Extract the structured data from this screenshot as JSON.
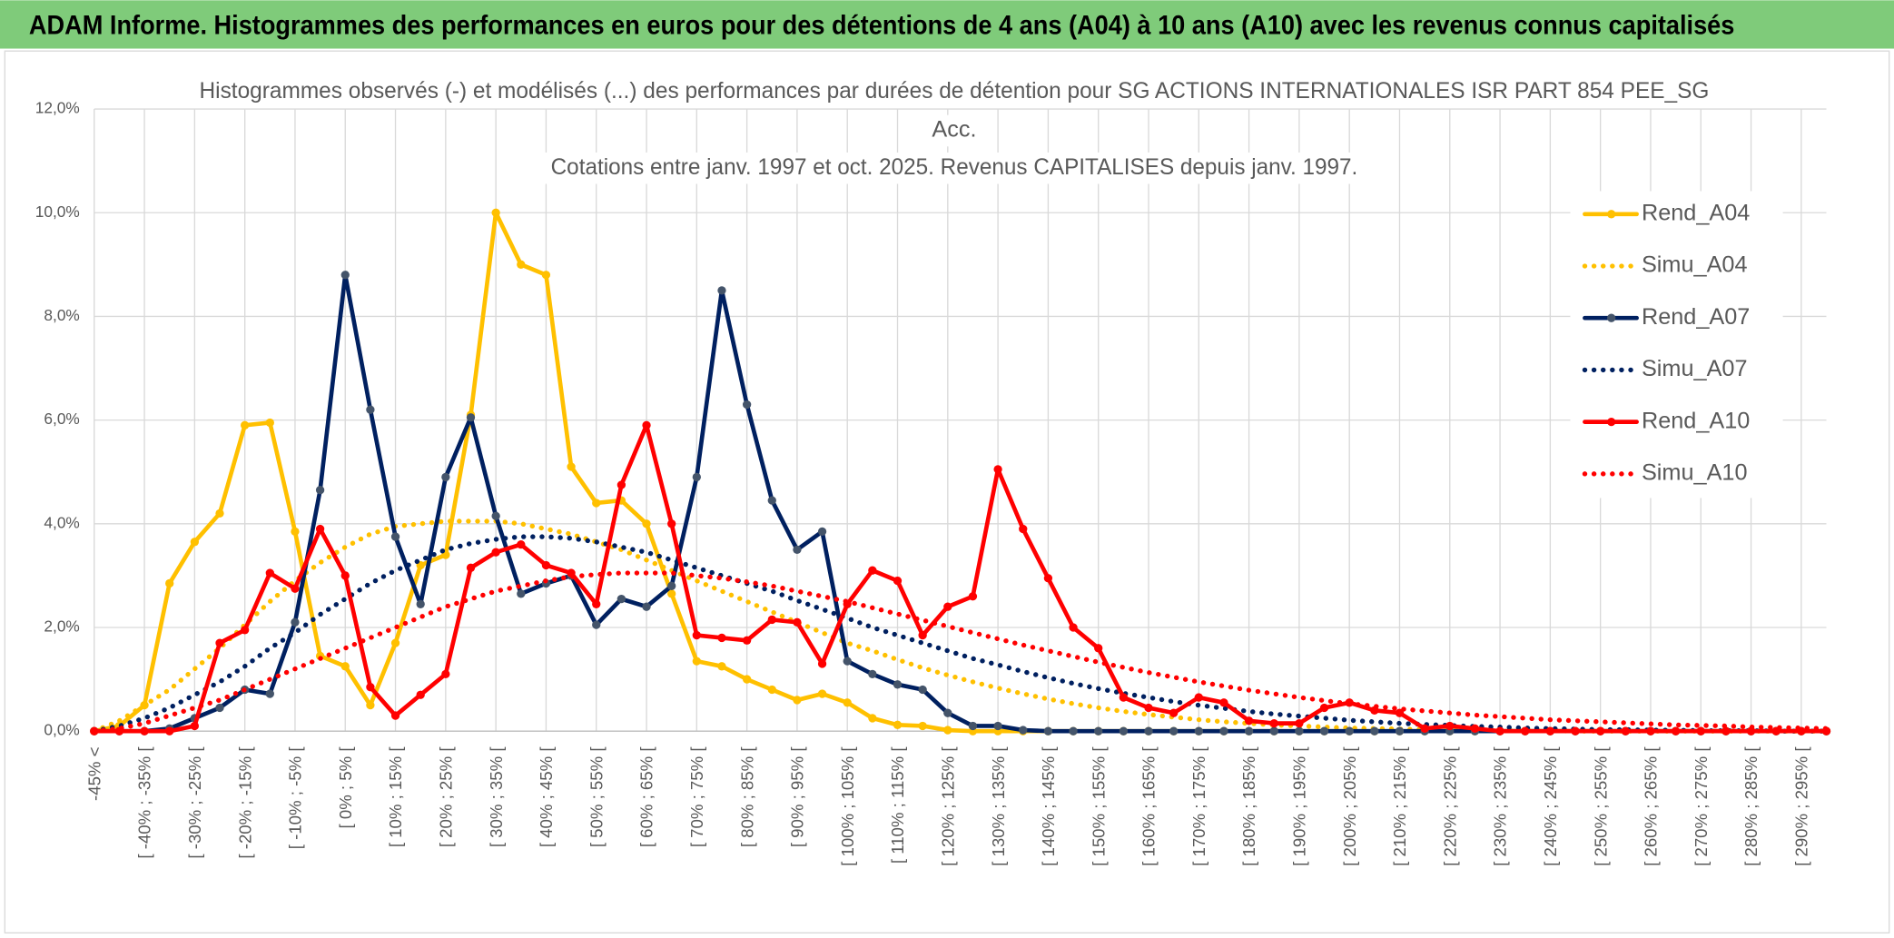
{
  "banner": {
    "title": "ADAM Informe. Histogrammes des performances en euros pour des détentions de 4 ans (A04) à 10 ans (A10) avec les revenus connus capitalisés"
  },
  "chart_data": {
    "type": "line",
    "title_lines": [
      "Histogrammes observés (-) et modélisés (...) des performances par durées de détention pour SG ACTIONS INTERNATIONALES ISR PART 854 PEE_SG",
      "Acc.",
      "Cotations entre janv. 1997 et oct. 2025. Revenus CAPITALISES depuis janv. 1997."
    ],
    "categories": [
      "-45% <",
      null,
      "[ -40% ; -35% [",
      null,
      "[ -30% ; -25% [",
      null,
      "[ -20% ; -15% [",
      null,
      "[ -10% ; -5% [",
      null,
      "[ 0% ; 5% [",
      null,
      "[ 10% ; 15% [",
      null,
      "[ 20% ; 25% [",
      null,
      "[ 30% ; 35% [",
      null,
      "[ 40% ; 45% [",
      null,
      "[ 50% ; 55% [",
      null,
      "[ 60% ; 65% [",
      null,
      "[ 70% ; 75% [",
      null,
      "[ 80% ; 85% [",
      null,
      "[ 90% ; 95% [",
      null,
      "[ 100% ; 105% [",
      null,
      "[ 110% ; 115% [",
      null,
      "[ 120% ; 125% [",
      null,
      "[ 130% ; 135% [",
      null,
      "[ 140% ; 145% [",
      null,
      "[ 150% ; 155% [",
      null,
      "[ 160% ; 165% [",
      null,
      "[ 170% ; 175% [",
      null,
      "[ 180% ; 185% [",
      null,
      "[ 190% ; 195% [",
      null,
      "[ 200% ; 205% [",
      null,
      "[ 210% ; 215% [",
      null,
      "[ 220% ; 225% [",
      null,
      "[ 230% ; 235% [",
      null,
      "[ 240% ; 245% [",
      null,
      "[ 250% ; 255% [",
      null,
      "[ 260% ; 265% [",
      null,
      "[ 270% ; 275% [",
      null,
      "[ 280% ; 285% [",
      null,
      "[ 290% ; 295% [",
      null
    ],
    "ylim": [
      0,
      12
    ],
    "yticks": [
      {
        "value": 0,
        "label": "0,0%"
      },
      {
        "value": 2,
        "label": "2,0%"
      },
      {
        "value": 4,
        "label": "4,0%"
      },
      {
        "value": 6,
        "label": "6,0%"
      },
      {
        "value": 8,
        "label": "8,0%"
      },
      {
        "value": 10,
        "label": "10,0%"
      },
      {
        "value": 12,
        "label": "12,0%"
      }
    ],
    "grid": true,
    "legend": "right",
    "series": [
      {
        "name": "Rend_A04",
        "color": "#ffc000",
        "style": "solid",
        "values": [
          0,
          0.1,
          0.5,
          2.85,
          3.65,
          4.2,
          5.9,
          5.95,
          3.85,
          1.45,
          1.25,
          0.5,
          1.7,
          3.2,
          3.4,
          6.1,
          10.0,
          9.0,
          8.8,
          5.1,
          4.4,
          4.45,
          4.0,
          2.65,
          1.35,
          1.25,
          1.0,
          0.8,
          0.6,
          0.72,
          0.55,
          0.25,
          0.12,
          0.1,
          0.02,
          0,
          0,
          0,
          0,
          0,
          0,
          0,
          0,
          0,
          0,
          0,
          0,
          0,
          0,
          0,
          0,
          0,
          0,
          0,
          0,
          0,
          0,
          0,
          0,
          0,
          0,
          0,
          0,
          0,
          0,
          0,
          0,
          0,
          0,
          0
        ]
      },
      {
        "name": "Simu_A04",
        "color": "#ffc000",
        "style": "dotted",
        "values": [
          0,
          0.2,
          0.5,
          0.8,
          1.2,
          1.6,
          2.05,
          2.5,
          2.9,
          3.25,
          3.55,
          3.8,
          3.95,
          4.0,
          4.05,
          4.05,
          4.05,
          4.0,
          3.9,
          3.8,
          3.65,
          3.5,
          3.3,
          3.1,
          2.9,
          2.7,
          2.5,
          2.3,
          2.1,
          1.9,
          1.7,
          1.55,
          1.38,
          1.22,
          1.08,
          0.95,
          0.83,
          0.72,
          0.62,
          0.53,
          0.45,
          0.38,
          0.32,
          0.27,
          0.22,
          0.18,
          0.15,
          0.12,
          0.1,
          0.08,
          0.06,
          0.05,
          0.04,
          0.03,
          0.02,
          0.02,
          0.01,
          0.01,
          0.01,
          0,
          0,
          0,
          0,
          0,
          0,
          0,
          0,
          0,
          0,
          0
        ]
      },
      {
        "name": "Rend_A07",
        "color": "#002060",
        "style": "solid",
        "values": [
          0,
          0,
          0,
          0.05,
          0.25,
          0.45,
          0.8,
          0.72,
          2.1,
          4.65,
          8.8,
          6.2,
          3.75,
          2.45,
          4.9,
          6.05,
          4.15,
          2.65,
          2.85,
          3.0,
          2.05,
          2.55,
          2.4,
          2.8,
          4.9,
          8.5,
          6.3,
          4.45,
          3.5,
          3.85,
          1.35,
          1.1,
          0.9,
          0.8,
          0.35,
          0.1,
          0.1,
          0.02,
          0,
          0,
          0,
          0,
          0,
          0,
          0,
          0,
          0,
          0,
          0,
          0,
          0,
          0,
          0,
          0,
          0,
          0,
          0,
          0,
          0,
          0,
          0,
          0,
          0,
          0,
          0,
          0,
          0,
          0,
          0,
          0
        ]
      },
      {
        "name": "Simu_A07",
        "color": "#002060",
        "style": "dotted",
        "values": [
          0,
          0.1,
          0.25,
          0.45,
          0.7,
          0.95,
          1.25,
          1.6,
          1.9,
          2.25,
          2.55,
          2.85,
          3.1,
          3.3,
          3.5,
          3.62,
          3.7,
          3.75,
          3.75,
          3.72,
          3.65,
          3.55,
          3.45,
          3.3,
          3.15,
          3.0,
          2.85,
          2.7,
          2.52,
          2.35,
          2.18,
          2.0,
          1.85,
          1.7,
          1.55,
          1.4,
          1.28,
          1.15,
          1.03,
          0.92,
          0.82,
          0.73,
          0.65,
          0.57,
          0.5,
          0.44,
          0.38,
          0.33,
          0.29,
          0.25,
          0.21,
          0.18,
          0.15,
          0.13,
          0.11,
          0.09,
          0.08,
          0.06,
          0.05,
          0.04,
          0.03,
          0.03,
          0.02,
          0.02,
          0.01,
          0.01,
          0.01,
          0,
          0,
          0
        ]
      },
      {
        "name": "Rend_A10",
        "color": "#ff0000",
        "style": "solid",
        "values": [
          0,
          0,
          0,
          0,
          0.1,
          1.7,
          1.95,
          3.05,
          2.75,
          3.9,
          3.0,
          0.85,
          0.3,
          0.7,
          1.1,
          3.15,
          3.45,
          3.6,
          3.2,
          3.05,
          2.45,
          4.75,
          5.9,
          4.0,
          1.85,
          1.8,
          1.75,
          2.15,
          2.1,
          1.3,
          2.45,
          3.1,
          2.9,
          1.85,
          2.4,
          2.6,
          5.05,
          3.9,
          2.95,
          2.0,
          1.6,
          0.65,
          0.45,
          0.35,
          0.65,
          0.55,
          0.2,
          0.15,
          0.15,
          0.45,
          0.55,
          0.4,
          0.35,
          0.05,
          0.1,
          0.05,
          0,
          0,
          0,
          0,
          0,
          0,
          0,
          0,
          0,
          0,
          0,
          0,
          0,
          0
        ]
      },
      {
        "name": "Simu_A10",
        "color": "#ff0000",
        "style": "dotted",
        "values": [
          0,
          0.05,
          0.15,
          0.3,
          0.45,
          0.6,
          0.8,
          1.0,
          1.2,
          1.4,
          1.6,
          1.8,
          2.0,
          2.2,
          2.4,
          2.55,
          2.7,
          2.8,
          2.9,
          2.98,
          3.02,
          3.05,
          3.05,
          3.05,
          3.0,
          2.95,
          2.88,
          2.8,
          2.7,
          2.6,
          2.5,
          2.38,
          2.26,
          2.14,
          2.02,
          1.9,
          1.78,
          1.66,
          1.55,
          1.44,
          1.33,
          1.23,
          1.13,
          1.04,
          0.95,
          0.87,
          0.79,
          0.72,
          0.65,
          0.59,
          0.53,
          0.48,
          0.43,
          0.39,
          0.35,
          0.31,
          0.28,
          0.25,
          0.22,
          0.2,
          0.18,
          0.16,
          0.14,
          0.12,
          0.11,
          0.1,
          0.08,
          0.07,
          0.06,
          0.05
        ]
      }
    ]
  }
}
